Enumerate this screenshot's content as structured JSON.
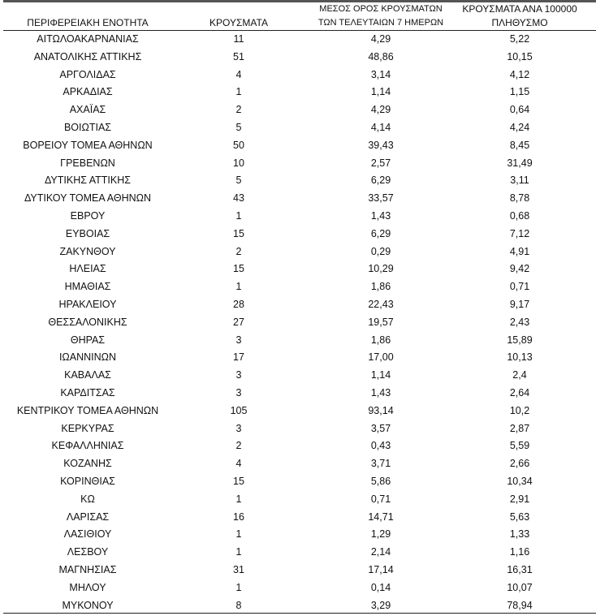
{
  "table": {
    "header": [
      [
        "ΠΕΡΙΦΕΡΕΙΑΚΗ ΕΝΟΤΗΤΑ"
      ],
      [
        "ΚΡΟΥΣΜΑΤΑ"
      ],
      [
        "ΜΕΣΟΣ ΟΡΟΣ ΚΡΟΥΣΜΑΤΩΝ",
        "ΤΩΝ ΤΕΛΕΥΤΑΙΩΝ 7 ΗΜΕΡΩΝ"
      ],
      [
        "ΚΡΟΥΣΜΑΤΑ ΑΝΑ 100000",
        "ΠΛΗΘΥΣΜΟ"
      ]
    ],
    "rows": [
      [
        "ΑΙΤΩΛΟΑΚΑΡΝΑΝΙΑΣ",
        11,
        "4,29",
        "5,22"
      ],
      [
        "ΑΝΑΤΟΛΙΚΗΣ ΑΤΤΙΚΗΣ",
        51,
        "48,86",
        "10,15"
      ],
      [
        "ΑΡΓΟΛΙΔΑΣ",
        4,
        "3,14",
        "4,12"
      ],
      [
        "ΑΡΚΑΔΙΑΣ",
        1,
        "1,14",
        "1,15"
      ],
      [
        "ΑΧΑΪΑΣ",
        2,
        "4,29",
        "0,64"
      ],
      [
        "ΒΟΙΩΤΙΑΣ",
        5,
        "4,14",
        "4,24"
      ],
      [
        "ΒΟΡΕΙΟΥ ΤΟΜΕΑ ΑΘΗΝΩΝ",
        50,
        "39,43",
        "8,45"
      ],
      [
        "ΓΡΕΒΕΝΩΝ",
        10,
        "2,57",
        "31,49"
      ],
      [
        "ΔΥΤΙΚΗΣ ΑΤΤΙΚΗΣ",
        5,
        "6,29",
        "3,11"
      ],
      [
        "ΔΥΤΙΚΟΥ ΤΟΜΕΑ ΑΘΗΝΩΝ",
        43,
        "33,57",
        "8,78"
      ],
      [
        "ΕΒΡΟΥ",
        1,
        "1,43",
        "0,68"
      ],
      [
        "ΕΥΒΟΙΑΣ",
        15,
        "6,29",
        "7,12"
      ],
      [
        "ΖΑΚΥΝΘΟΥ",
        2,
        "0,29",
        "4,91"
      ],
      [
        "ΗΛΕΙΑΣ",
        15,
        "10,29",
        "9,42"
      ],
      [
        "ΗΜΑΘΙΑΣ",
        1,
        "1,86",
        "0,71"
      ],
      [
        "ΗΡΑΚΛΕΙΟΥ",
        28,
        "22,43",
        "9,17"
      ],
      [
        "ΘΕΣΣΑΛΟΝΙΚΗΣ",
        27,
        "19,57",
        "2,43"
      ],
      [
        "ΘΗΡΑΣ",
        3,
        "1,86",
        "15,89"
      ],
      [
        "ΙΩΑΝΝΙΝΩΝ",
        17,
        "17,00",
        "10,13"
      ],
      [
        "ΚΑΒΑΛΑΣ",
        3,
        "1,14",
        "2,4"
      ],
      [
        "ΚΑΡΔΙΤΣΑΣ",
        3,
        "1,43",
        "2,64"
      ],
      [
        "ΚΕΝΤΡΙΚΟΥ ΤΟΜΕΑ ΑΘΗΝΩΝ",
        105,
        "93,14",
        "10,2"
      ],
      [
        "ΚΕΡΚΥΡΑΣ",
        3,
        "3,57",
        "2,87"
      ],
      [
        "ΚΕΦΑΛΛΗΝΙΑΣ",
        2,
        "0,43",
        "5,59"
      ],
      [
        "ΚΟΖΑΝΗΣ",
        4,
        "3,71",
        "2,66"
      ],
      [
        "ΚΟΡΙΝΘΙΑΣ",
        15,
        "5,86",
        "10,34"
      ],
      [
        "ΚΩ",
        1,
        "0,71",
        "2,91"
      ],
      [
        "ΛΑΡΙΣΑΣ",
        16,
        "14,71",
        "5,63"
      ],
      [
        "ΛΑΣΙΘΙΟΥ",
        1,
        "1,29",
        "1,33"
      ],
      [
        "ΛΕΣΒΟΥ",
        1,
        "2,14",
        "1,16"
      ],
      [
        "ΜΑΓΝΗΣΙΑΣ",
        31,
        "17,14",
        "16,31"
      ],
      [
        "ΜΗΛΟΥ",
        1,
        "0,14",
        "10,07"
      ],
      [
        "ΜΥΚΟΝΟΥ",
        8,
        "3,29",
        "78,94"
      ]
    ]
  }
}
